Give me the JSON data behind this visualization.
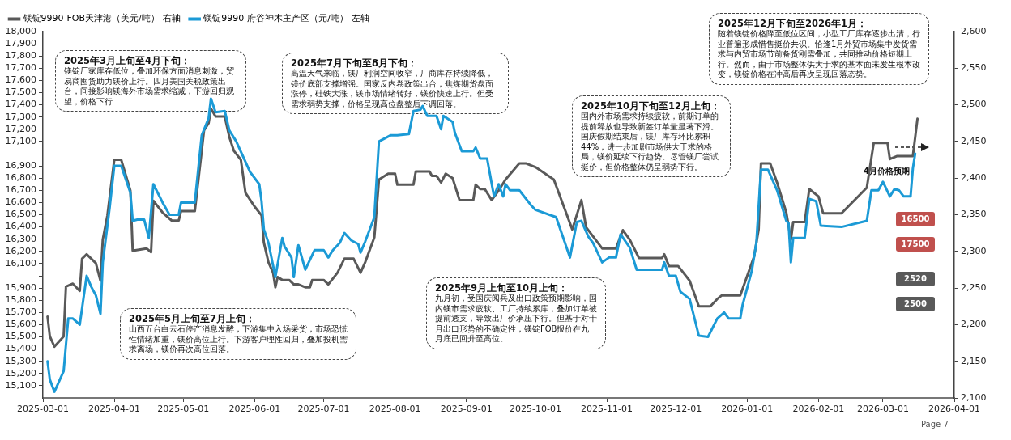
{
  "chart_data": {
    "type": "line",
    "xlim": [
      "2025-03-01",
      "2026-04-01"
    ],
    "xticks": [
      "2025-03-01",
      "2025-04-01",
      "2025-05-01",
      "2025-06-01",
      "2025-07-01",
      "2025-08-01",
      "2025-09-01",
      "2025-10-01",
      "2025-11-01",
      "2025-12-01",
      "2026-01-01",
      "2026-02-01",
      "2026-03-01",
      "2026-04-01"
    ],
    "ylim": [
      15000,
      18000
    ],
    "yticks": [
      {
        "value": 15100,
        "label": "15,100"
      },
      {
        "value": 15200,
        "label": "15,200"
      },
      {
        "value": 15300,
        "label": "15,300"
      },
      {
        "value": 15400,
        "label": "15,400"
      },
      {
        "value": 15500,
        "label": "15,500"
      },
      {
        "value": 15600,
        "label": "15,600"
      },
      {
        "value": 15700,
        "label": "15,700"
      },
      {
        "value": 15800,
        "label": "15,800"
      },
      {
        "value": 15900,
        "label": "15,900"
      },
      {
        "value": 16000,
        "label": null
      },
      {
        "value": 16100,
        "label": "16,100"
      },
      {
        "value": 16200,
        "label": "16,200"
      },
      {
        "value": 16300,
        "label": "16,300"
      },
      {
        "value": 16400,
        "label": "16,400"
      },
      {
        "value": 16500,
        "label": "16,500"
      },
      {
        "value": 16600,
        "label": "16,600"
      },
      {
        "value": 16700,
        "label": "16,700"
      },
      {
        "value": 16800,
        "label": "16,800"
      },
      {
        "value": 16900,
        "label": "16,900"
      },
      {
        "value": 17000,
        "label": null
      },
      {
        "value": 17100,
        "label": "17,100"
      },
      {
        "value": 17200,
        "label": "17,200"
      },
      {
        "value": 17300,
        "label": "17,300"
      },
      {
        "value": 17400,
        "label": "17,400"
      },
      {
        "value": 17500,
        "label": "17,500"
      },
      {
        "value": 17600,
        "label": "17,600"
      },
      {
        "value": 17700,
        "label": "17,700"
      },
      {
        "value": 17800,
        "label": "17,800"
      },
      {
        "value": 17900,
        "label": "17,900"
      },
      {
        "value": 18000,
        "label": "18,000"
      }
    ],
    "y2lim": [
      2100,
      2600
    ],
    "y2ticks": [
      {
        "value": 2100,
        "label": "2,100"
      },
      {
        "value": 2150,
        "label": "2,150"
      },
      {
        "value": 2200,
        "label": "2,200"
      },
      {
        "value": 2250,
        "label": "2,250"
      },
      {
        "value": 2300,
        "label": "2,300"
      },
      {
        "value": 2350,
        "label": "2,350"
      },
      {
        "value": 2400,
        "label": "2,400"
      },
      {
        "value": 2450,
        "label": "2,450"
      },
      {
        "value": 2500,
        "label": "2,500"
      },
      {
        "value": 2550,
        "label": "2,550"
      },
      {
        "value": 2600,
        "label": "2,600"
      }
    ],
    "grid": false,
    "legend": "top left",
    "marker": "none",
    "line_style": "solid",
    "series": [
      {
        "name": "镁锭9990-FOB天津港（美元/吨）-右轴",
        "color": "#595959",
        "axis": "y2",
        "x": [
          "2025-03-03",
          "2025-03-04",
          "2025-03-06",
          "2025-03-10",
          "2025-03-11",
          "2025-03-14",
          "2025-03-17",
          "2025-03-18",
          "2025-03-20",
          "2025-03-22",
          "2025-03-24",
          "2025-03-26",
          "2025-03-27",
          "2025-03-29",
          "2025-04-01",
          "2025-04-04",
          "2025-04-08",
          "2025-04-09",
          "2025-04-15",
          "2025-04-17",
          "2025-04-18",
          "2025-04-22",
          "2025-04-26",
          "2025-04-29",
          "2025-04-30",
          "2025-05-06",
          "2025-05-10",
          "2025-05-12",
          "2025-05-13",
          "2025-05-15",
          "2025-05-19",
          "2025-05-21",
          "2025-05-23",
          "2025-05-26",
          "2025-05-28",
          "2025-06-01",
          "2025-06-04",
          "2025-06-05",
          "2025-06-07",
          "2025-06-09",
          "2025-06-10",
          "2025-06-11",
          "2025-06-13",
          "2025-06-16",
          "2025-06-18",
          "2025-06-20",
          "2025-06-23",
          "2025-06-25",
          "2025-06-26",
          "2025-07-01",
          "2025-07-03",
          "2025-07-07",
          "2025-07-10",
          "2025-07-14",
          "2025-07-17",
          "2025-07-19",
          "2025-07-23",
          "2025-07-25",
          "2025-07-29",
          "2025-08-01",
          "2025-08-02",
          "2025-08-09",
          "2025-08-10",
          "2025-08-16",
          "2025-08-17",
          "2025-08-19",
          "2025-08-21",
          "2025-08-23",
          "2025-08-26",
          "2025-08-29",
          "2025-09-04",
          "2025-09-05",
          "2025-09-07",
          "2025-09-09",
          "2025-09-12",
          "2025-09-15",
          "2025-09-18",
          "2025-09-24",
          "2025-09-27",
          "2025-10-01",
          "2025-10-09",
          "2025-10-17",
          "2025-10-21",
          "2025-10-23",
          "2025-10-30",
          "2025-11-05",
          "2025-11-08",
          "2025-11-11",
          "2025-11-15",
          "2025-11-25",
          "2025-11-26",
          "2025-11-28",
          "2025-12-02",
          "2025-12-07",
          "2025-12-11",
          "2025-12-16",
          "2025-12-19",
          "2025-12-21",
          "2025-12-29",
          "2026-01-04",
          "2026-01-06",
          "2026-01-07",
          "2026-01-11",
          "2026-01-14",
          "2026-01-18",
          "2026-01-20",
          "2026-01-21",
          "2026-01-26",
          "2026-01-28",
          "2026-02-01",
          "2026-02-03",
          "2026-02-11",
          "2026-02-22",
          "2026-02-25",
          "2026-03-03",
          "2026-03-04",
          "2026-03-07",
          "2026-03-14",
          "2026-03-16"
        ],
        "values": [
          2211,
          2184,
          2170,
          2184,
          2252,
          2256,
          2246,
          2290,
          2296,
          2290,
          2284,
          2260,
          2316,
          2349,
          2425,
          2425,
          2383,
          2301,
          2304,
          2299,
          2369,
          2353,
          2342,
          2342,
          2355,
          2355,
          2465,
          2475,
          2495,
          2484,
          2484,
          2456,
          2437,
          2425,
          2380,
          2361,
          2349,
          2312,
          2285,
          2271,
          2251,
          2265,
          2261,
          2261,
          2255,
          2255,
          2251,
          2251,
          2261,
          2261,
          2255,
          2271,
          2290,
          2290,
          2271,
          2285,
          2319,
          2398,
          2406,
          2406,
          2391,
          2391,
          2409,
          2409,
          2403,
          2403,
          2394,
          2406,
          2400,
          2370,
          2370,
          2391,
          2385,
          2385,
          2370,
          2383,
          2398,
          2420,
          2420,
          2415,
          2398,
          2330,
          2370,
          2333,
          2304,
          2304,
          2329,
          2316,
          2291,
          2291,
          2296,
          2280,
          2280,
          2260,
          2225,
          2225,
          2235,
          2240,
          2240,
          2293,
          2330,
          2420,
          2420,
          2394,
          2353,
          2316,
          2340,
          2340,
          2385,
          2375,
          2352,
          2352,
          2387,
          2448,
          2448,
          2426,
          2430,
          2430,
          2481
        ]
      },
      {
        "name": "镁锭9990-府谷神木主产区（元/吨）-左轴",
        "color": "#1b9ad6",
        "x": [
          "2025-03-03",
          "2025-03-04",
          "2025-03-06",
          "2025-03-10",
          "2025-03-12",
          "2025-03-14",
          "2025-03-17",
          "2025-03-20",
          "2025-03-22",
          "2025-03-24",
          "2025-03-26",
          "2025-03-27",
          "2025-03-30",
          "2025-04-01",
          "2025-04-04",
          "2025-04-08",
          "2025-04-09",
          "2025-04-11",
          "2025-04-14",
          "2025-04-16",
          "2025-04-18",
          "2025-04-22",
          "2025-04-25",
          "2025-04-29",
          "2025-04-30",
          "2025-05-06",
          "2025-05-09",
          "2025-05-12",
          "2025-05-13",
          "2025-05-15",
          "2025-05-19",
          "2025-05-21",
          "2025-05-24",
          "2025-05-30",
          "2025-06-03",
          "2025-06-04",
          "2025-06-05",
          "2025-06-07",
          "2025-06-10",
          "2025-06-13",
          "2025-06-14",
          "2025-06-17",
          "2025-06-18",
          "2025-06-20",
          "2025-06-23",
          "2025-06-27",
          "2025-07-01",
          "2025-07-03",
          "2025-07-05",
          "2025-07-08",
          "2025-07-10",
          "2025-07-13",
          "2025-07-16",
          "2025-07-17",
          "2025-07-19",
          "2025-07-23",
          "2025-07-25",
          "2025-07-30",
          "2025-08-02",
          "2025-08-07",
          "2025-08-09",
          "2025-08-12",
          "2025-08-13",
          "2025-08-15",
          "2025-08-19",
          "2025-08-21",
          "2025-08-22",
          "2025-08-26",
          "2025-08-27",
          "2025-08-30",
          "2025-09-04",
          "2025-09-05",
          "2025-09-07",
          "2025-09-10",
          "2025-09-13",
          "2025-09-15",
          "2025-09-17",
          "2025-09-18",
          "2025-09-20",
          "2025-09-24",
          "2025-09-29",
          "2025-10-01",
          "2025-10-10",
          "2025-10-16",
          "2025-10-19",
          "2025-10-21",
          "2025-10-24",
          "2025-10-26",
          "2025-10-30",
          "2025-11-02",
          "2025-11-05",
          "2025-11-07",
          "2025-11-11",
          "2025-11-14",
          "2025-11-25",
          "2025-11-26",
          "2025-11-28",
          "2025-12-01",
          "2025-12-03",
          "2025-12-07",
          "2025-12-11",
          "2025-12-15",
          "2025-12-19",
          "2025-12-22",
          "2025-12-24",
          "2025-12-29",
          "2025-12-30",
          "2026-01-03",
          "2026-01-05",
          "2026-01-07",
          "2026-01-10",
          "2026-01-14",
          "2026-01-18",
          "2026-01-19",
          "2026-01-20",
          "2026-01-21",
          "2026-01-26",
          "2026-01-28",
          "2026-01-31",
          "2026-02-02",
          "2026-02-11",
          "2026-02-22",
          "2026-02-24",
          "2026-02-27",
          "2026-03-01",
          "2026-03-04",
          "2026-03-06",
          "2026-03-08",
          "2026-03-10",
          "2026-03-13",
          "2026-03-14",
          "2026-03-15"
        ],
        "values": [
          15300,
          15150,
          15050,
          15220,
          15650,
          15650,
          15600,
          16000,
          15910,
          15840,
          15690,
          16110,
          16560,
          16900,
          16900,
          16680,
          16450,
          16460,
          16460,
          16310,
          16750,
          16600,
          16500,
          16500,
          16600,
          16600,
          17150,
          17290,
          17450,
          17340,
          17350,
          17190,
          17100,
          16850,
          16750,
          16610,
          16380,
          16270,
          15990,
          16310,
          16240,
          16150,
          15990,
          16250,
          16050,
          16210,
          16210,
          16150,
          16210,
          16270,
          16350,
          16290,
          16260,
          16190,
          16280,
          16480,
          17100,
          17150,
          17150,
          17160,
          17350,
          17360,
          17390,
          17310,
          17310,
          17200,
          17310,
          17260,
          17170,
          17020,
          17020,
          17050,
          16960,
          16960,
          16650,
          16750,
          16650,
          16750,
          16700,
          16700,
          16580,
          16540,
          16480,
          16150,
          16440,
          16450,
          16320,
          16270,
          16110,
          16150,
          16150,
          16340,
          16230,
          16050,
          16050,
          16110,
          16000,
          16000,
          15870,
          15810,
          15510,
          15500,
          15650,
          15700,
          15650,
          15650,
          15760,
          16040,
          16270,
          16870,
          16870,
          16700,
          16450,
          16430,
          16110,
          16310,
          16310,
          16630,
          16610,
          16410,
          16400,
          16450,
          16700,
          16700,
          16770,
          16650,
          16710,
          16700,
          16650,
          16650,
          16880,
          17000
        ]
      }
    ],
    "annotations": [
      "2025年3月上旬至4月下旬：",
      "镁锭厂家库存低位，叠加环保方面消息刺激，贸易商囤货助力镁价上行。四月美国关税政策出台，间接影响镁海外市场需求缩减，下游回归观望，价格下行",
      "2025年7月下旬至8月下旬：",
      "高温天气来临，镁厂利润空间收窄，厂商库存持续降低，镁价底部支撑增强。国家反内卷政策出台，焦煤期货盘面涨停，硅铁大涨，镁市场情绪转好，镁价快速上行。但受需求弱势支撑，价格呈现高位盘整后下调回落。",
      "2025年5月上旬至7月上旬：",
      "山西五台白云石停产消息发酵，下游集中入场采货，市场恐慌性情绪加重，镁价高位上行。下游客户理性回归，叠加投机需求离场，镁价再次高位回落。",
      "2025年9月上旬至10月上旬：",
      "九月初，受国庆阅兵及出口政策预期影响，国内镁市需求疲软、工厂持续累库，叠加订单被提前透支，导致出厂价承压下行。但基于对十月出口形势的不确定性，镁锭FOB报价在九月底已回升至高位。",
      "2025年10月下旬至12月上旬：",
      "国内外市场需求持续疲软，前期订单的提前释放也导致新签订单量显著下滑。国庆假期结束后，镁厂库存环比累积44%，进一步加剧市场供大于求的格局，镁价延续下行趋势。尽管镁厂尝试挺价，但价格整体仍呈弱势下行。",
      "2025年12月下旬至2026年1月：",
      "随着镁锭价格降至低位区间，小型工厂库存逐步出清，行业普遍形成惜售挺价共识。恰逢1月外贸市场集中发货需求与内贸市场节前备货刚需叠加，共同推动价格短期上行。然而，由于市场整体供大于求的基本面未发生根本改变，镁锭价格在冲高后再次呈现回落态势。",
      "4月价格预期",
      "16500",
      "17500",
      "2520",
      "2500",
      "Page 7"
    ]
  }
}
